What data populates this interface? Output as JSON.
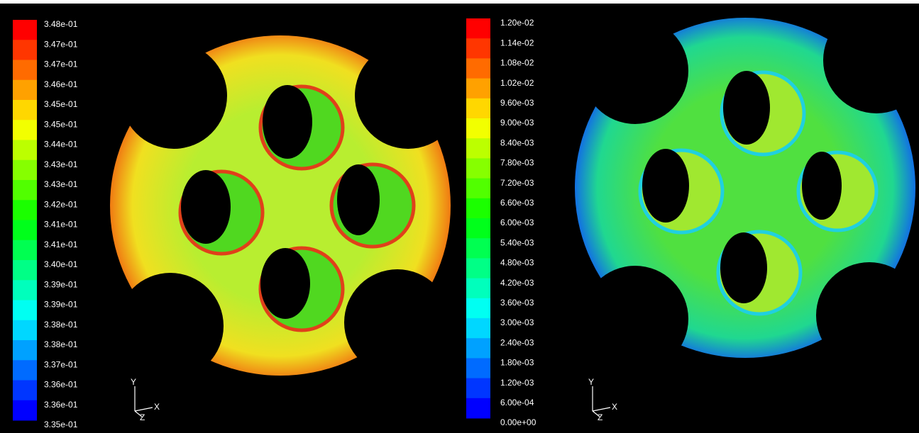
{
  "panels": [
    {
      "colorbar": {
        "labels": [
          "3.48e-01",
          "3.47e-01",
          "3.47e-01",
          "3.46e-01",
          "3.45e-01",
          "3.45e-01",
          "3.44e-01",
          "3.43e-01",
          "3.43e-01",
          "3.42e-01",
          "3.41e-01",
          "3.41e-01",
          "3.40e-01",
          "3.39e-01",
          "3.39e-01",
          "3.38e-01",
          "3.38e-01",
          "3.37e-01",
          "3.36e-01",
          "3.36e-01",
          "3.35e-01"
        ]
      },
      "axes": {
        "y": "Y",
        "z": "Z",
        "x": "X"
      }
    },
    {
      "colorbar": {
        "labels": [
          "1.20e-02",
          "1.14e-02",
          "1.08e-02",
          "1.02e-02",
          "9.60e-03",
          "9.00e-03",
          "8.40e-03",
          "7.80e-03",
          "7.20e-03",
          "6.60e-03",
          "6.00e-03",
          "5.40e-03",
          "4.80e-03",
          "4.20e-03",
          "3.60e-03",
          "3.00e-03",
          "2.40e-03",
          "1.80e-03",
          "1.20e-03",
          "6.00e-04",
          "0.00e+00"
        ]
      },
      "axes": {
        "y": "Y",
        "z": "Z",
        "x": "X"
      }
    }
  ]
}
